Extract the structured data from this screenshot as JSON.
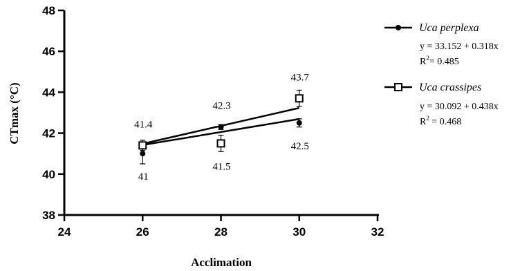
{
  "chart_data": {
    "type": "scatter",
    "title": "",
    "xlabel": "Acclimation",
    "ylabel": "CTmax (°C)",
    "xlim": [
      24,
      32
    ],
    "ylim": [
      38,
      48
    ],
    "x_ticks": [
      "24",
      "26",
      "28",
      "30",
      "32"
    ],
    "y_ticks": [
      "38",
      "40",
      "42",
      "44",
      "46",
      "48"
    ],
    "grid": false,
    "legend_position": "right",
    "series": [
      {
        "name": "Uca perplexa",
        "marker": "filled-circle",
        "x": [
          26,
          28,
          30
        ],
        "y": [
          41.0,
          42.3,
          42.5
        ],
        "error": [
          0.5,
          0.12,
          0.2
        ],
        "point_labels": [
          "41",
          "42.3",
          "42.5"
        ],
        "label_side": [
          "below",
          "above",
          "below"
        ],
        "trendline": {
          "intercept": 33.152,
          "slope": 0.318
        },
        "equation": "y = 33.152 + 0.318x",
        "r2_label": "R",
        "r2_exp": "2",
        "r2_value": "= 0.485"
      },
      {
        "name": "Uca crassipes",
        "marker": "open-square",
        "x": [
          26,
          28,
          30
        ],
        "y": [
          41.4,
          41.5,
          43.7
        ],
        "error": [
          0.25,
          0.4,
          0.4
        ],
        "point_labels": [
          "41.4",
          "41.5",
          "43.7"
        ],
        "label_side": [
          "above",
          "below",
          "above"
        ],
        "trendline": {
          "intercept": 30.092,
          "slope": 0.438
        },
        "equation": "y = 30.092 + 0.438x",
        "r2_label": "R",
        "r2_exp": "2",
        "r2_value": " = 0.468"
      }
    ]
  }
}
